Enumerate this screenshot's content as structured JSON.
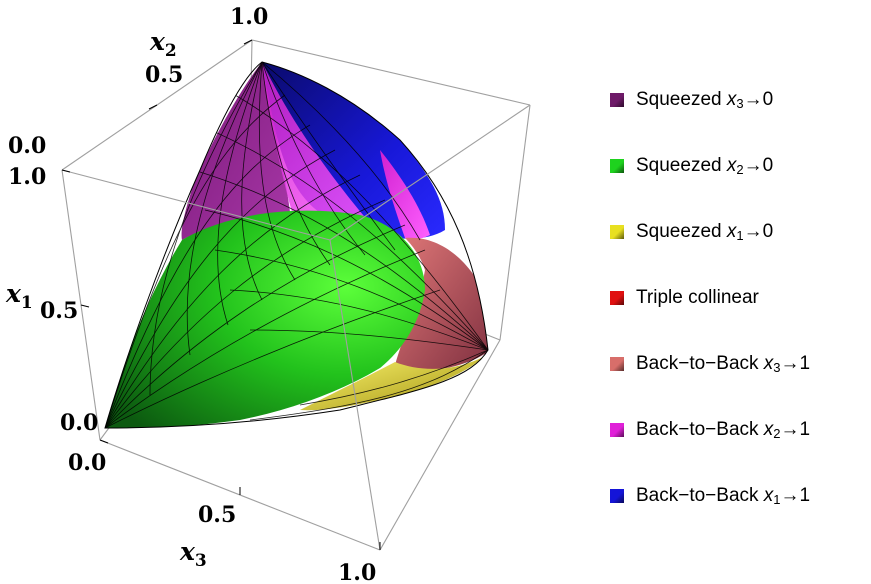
{
  "axes": {
    "x1": {
      "label": "x",
      "sub": "1",
      "ticks": [
        "0.0",
        "0.5",
        "1.0"
      ]
    },
    "x2": {
      "label": "x",
      "sub": "2",
      "ticks": [
        "0.0",
        "0.5",
        "1.0"
      ]
    },
    "x3": {
      "label": "x",
      "sub": "3",
      "ticks": [
        "0.0",
        "0.5",
        "1.0"
      ]
    }
  },
  "legend": [
    {
      "pre": "Squeezed ",
      "var": "x",
      "sub": "3",
      "post": "→0",
      "color": "#6e1a68"
    },
    {
      "pre": "Squeezed ",
      "var": "x",
      "sub": "2",
      "post": "→0",
      "color": "#1ed21e"
    },
    {
      "pre": "Squeezed ",
      "var": "x",
      "sub": "1",
      "post": "→0",
      "color": "#e8e020"
    },
    {
      "pre": "Triple collinear",
      "var": "",
      "sub": "",
      "post": "",
      "color": "#e01010"
    },
    {
      "pre": "Back−to−Back ",
      "var": "x",
      "sub": "3",
      "post": "→1",
      "color": "#d86e6a"
    },
    {
      "pre": "Back−to−Back ",
      "var": "x",
      "sub": "2",
      "post": "→1",
      "color": "#e020d8"
    },
    {
      "pre": "Back−to−Back ",
      "var": "x",
      "sub": "1",
      "post": "→1",
      "color": "#1414d8"
    }
  ]
}
